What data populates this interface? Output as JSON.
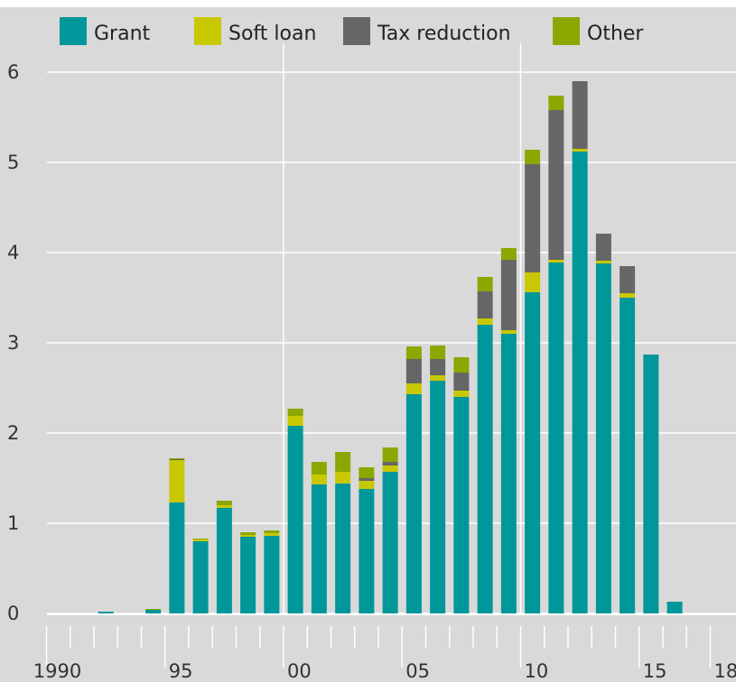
{
  "chart_data": {
    "type": "bar",
    "stacked": true,
    "series": [
      {
        "name": "Grant",
        "color": "#00979a",
        "values": [
          0,
          0.02,
          0,
          0.04,
          1.23,
          0.8,
          1.17,
          0.85,
          0.86,
          2.08,
          1.43,
          1.44,
          1.38,
          1.57,
          2.43,
          2.58,
          2.4,
          3.2,
          3.1,
          3.56,
          3.89,
          5.12,
          3.88,
          3.5,
          2.87,
          0.13
        ]
      },
      {
        "name": "Soft loan",
        "color": "#c8c800",
        "values": [
          0,
          0,
          0,
          0,
          0.47,
          0.02,
          0.03,
          0.02,
          0.03,
          0.11,
          0.11,
          0.13,
          0.09,
          0.07,
          0.12,
          0.06,
          0.07,
          0.07,
          0.04,
          0.22,
          0.03,
          0.03,
          0.03,
          0.05,
          0,
          0
        ]
      },
      {
        "name": "Tax reduction",
        "color": "#666666",
        "values": [
          0,
          0,
          0,
          0,
          0.01,
          0,
          0,
          0,
          0,
          0,
          0,
          0,
          0.03,
          0.04,
          0.27,
          0.18,
          0.2,
          0.3,
          0.78,
          1.2,
          1.66,
          0.75,
          0.3,
          0.3,
          0,
          0
        ]
      },
      {
        "name": "Other",
        "color": "#8aa800",
        "values": [
          0,
          0,
          0,
          0.01,
          0.01,
          0.01,
          0.05,
          0.03,
          0.03,
          0.08,
          0.14,
          0.22,
          0.12,
          0.16,
          0.14,
          0.15,
          0.17,
          0.16,
          0.13,
          0.16,
          0.16,
          0,
          0,
          0,
          0,
          0
        ]
      }
    ],
    "x": [
      1992,
      1993,
      1994,
      1995,
      1996,
      1997,
      1998,
      1999,
      2000,
      2001,
      2002,
      2003,
      2004,
      2005,
      2006,
      2007,
      2008,
      2009,
      2010,
      2011,
      2012,
      2013,
      2014,
      2015,
      2016,
      2017
    ],
    "xlim": [
      1990,
      2018
    ],
    "ylim": [
      0,
      6
    ],
    "yticks": [
      0,
      1,
      2,
      3,
      4,
      5,
      6
    ],
    "xtick_labels": [
      {
        "x": 1990,
        "label": "1990"
      },
      {
        "x": 1995,
        "label": "95"
      },
      {
        "x": 2000,
        "label": "00"
      },
      {
        "x": 2005,
        "label": "05"
      },
      {
        "x": 2010,
        "label": "10"
      },
      {
        "x": 2015,
        "label": "15"
      },
      {
        "x": 2018,
        "label": "18"
      }
    ],
    "grid": true,
    "legend_position": "top",
    "background": "#d9d9d9",
    "gridline_color": "#ffffff"
  }
}
